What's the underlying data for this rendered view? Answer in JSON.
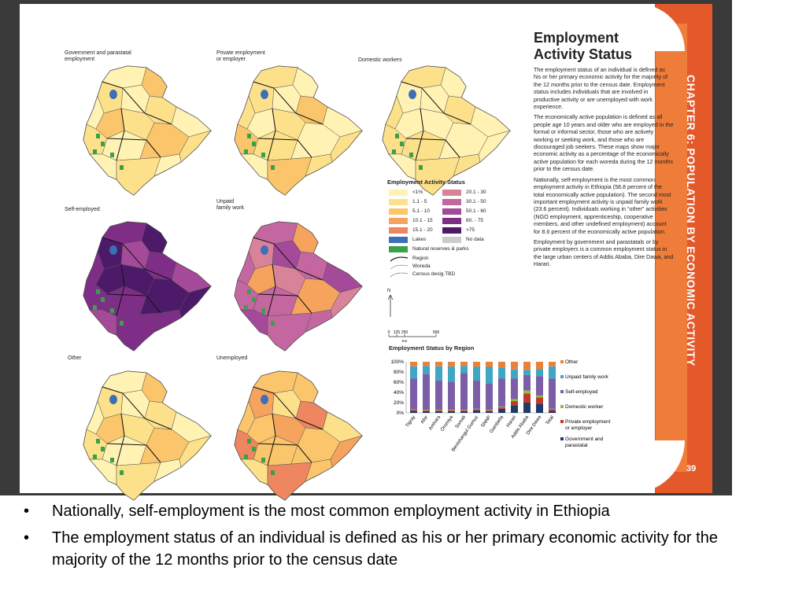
{
  "page": {
    "chapter": "CHAPTER 6: POPULATION BY ECONOMIC ACTIVITY",
    "page_number": "39",
    "title_line1": "Employment",
    "title_line2": "Activity Status",
    "paragraphs": [
      "The employment status of an individual is defined as his or her primary economic activity for the majority of the 12 months prior to the census date. Employment status includes individuals that are involved in productive activity or are unemployed with work experience.",
      "The economically active population is defined as all people age 10 years and older who are employed in the formal or informal sector, those who are actively working or seeking work, and those who are discouraged job seekers. These maps show major economic activity as a percentage of the economically active population for each woreda during the 12 months prior to the census date.",
      "Nationally, self-employment is the most common employment activity in Ethiopia (58.8 percent of the total economically active population). The second most important employment activity is unpaid family work (23.6 percent). Individuals working in “other” activities (NGO employment, apprenticeship, cooperative members, and other undefined employment) account for 8.6 percent of the economically active population.",
      "Employment by government and parastatals or by private employers is a common employment status in the large urban centers of Addis Ababa, Dire Dawa, and Harari."
    ]
  },
  "maps": [
    {
      "label_line1": "Government and parastatal",
      "label_line2": "employment",
      "palette": "low"
    },
    {
      "label_line1": "Private employment",
      "label_line2": "or employer",
      "palette": "low"
    },
    {
      "label_line1": "Domestic workers",
      "label_line2": "",
      "palette": "verylow"
    },
    {
      "label_line1": "Self-employed",
      "label_line2": "",
      "palette": "high"
    },
    {
      "label_line1": "Unpaid",
      "label_line2": "family work",
      "palette": "mid"
    },
    {
      "label_line1": "Other",
      "label_line2": "",
      "palette": "low"
    },
    {
      "label_line1": "Unemployed",
      "label_line2": "",
      "palette": "lowmid"
    }
  ],
  "legend": {
    "title": "Employment Activity Status",
    "left": [
      {
        "label": "<1%",
        "color": "#fff2b3"
      },
      {
        "label": "1.1 - 5",
        "color": "#fde18a"
      },
      {
        "label": "5.1 - 10",
        "color": "#fbc66b"
      },
      {
        "label": "10.1 - 15",
        "color": "#f6a35e"
      },
      {
        "label": "15.1 - 20",
        "color": "#ee8660"
      }
    ],
    "right": [
      {
        "label": "20.1 - 30",
        "color": "#d9839a"
      },
      {
        "label": "30.1 - 50",
        "color": "#c467a0"
      },
      {
        "label": "50.1 - 60",
        "color": "#a54a98"
      },
      {
        "label": "60. - 75",
        "color": "#7e2e86"
      },
      {
        "label": ">75",
        "color": "#4d1a6a"
      }
    ],
    "lakes": "Lakes",
    "lakes_color": "#3c6fb6",
    "no_data": "No data",
    "no_data_color": "#cccccc",
    "reserves": "Natural reserves & parks",
    "reserves_color": "#3aa04a",
    "region": "Region",
    "woreda": "Woreda",
    "census": "Census desig.TBD",
    "north": "N",
    "scale": [
      "0",
      "125",
      "250",
      "500"
    ],
    "scale_unit": "Km"
  },
  "chart_data": {
    "type": "bar",
    "title": "Employment Status by Region",
    "stacked": true,
    "categories": [
      "Tigray",
      "Afar",
      "Amhara",
      "Oromiya",
      "Somali",
      "Benishangul Gumuz",
      "SNNP",
      "Gambella",
      "Harari",
      "Addis Ababa",
      "Dire Dawa",
      "Total"
    ],
    "yticks": [
      "100%",
      "80%",
      "60%",
      "40%",
      "20%",
      "0%"
    ],
    "ylim": [
      0,
      100
    ],
    "series": [
      {
        "name": "Government and parastatal",
        "color": "#1f3b66",
        "values": [
          4,
          3,
          3,
          3,
          3,
          5,
          3,
          8,
          15,
          20,
          18,
          4
        ]
      },
      {
        "name": "Private employment or employer",
        "color": "#c0392b",
        "values": [
          2,
          2,
          2,
          2,
          2,
          2,
          2,
          3,
          8,
          18,
          12,
          3
        ]
      },
      {
        "name": "Domestic worker",
        "color": "#8fbc3f",
        "values": [
          1,
          1,
          1,
          1,
          1,
          1,
          1,
          1,
          4,
          6,
          4,
          1
        ]
      },
      {
        "name": "Self-employed",
        "color": "#7b5ea7",
        "values": [
          60,
          70,
          57,
          55,
          72,
          55,
          52,
          55,
          40,
          30,
          38,
          59
        ]
      },
      {
        "name": "Unpaid family work",
        "color": "#3fa7c4",
        "values": [
          24,
          16,
          28,
          30,
          14,
          27,
          32,
          22,
          18,
          10,
          14,
          24
        ]
      },
      {
        "name": "Other",
        "color": "#e8823a",
        "values": [
          9,
          8,
          9,
          9,
          8,
          10,
          10,
          11,
          15,
          16,
          14,
          9
        ]
      }
    ],
    "legend_labels": [
      "Other",
      "Unpaid family work",
      "Self-employed",
      "Domestic worker",
      "Private employment",
      "or employer",
      "Government and",
      "parastatal"
    ]
  },
  "bullets": [
    "Nationally, self-employment is the most common employment activity in Ethiopia",
    "The employment status of an individual is defined as his or her primary economic activity for the majority of the 12 months prior to the census date"
  ],
  "bullet_glyph": "•"
}
